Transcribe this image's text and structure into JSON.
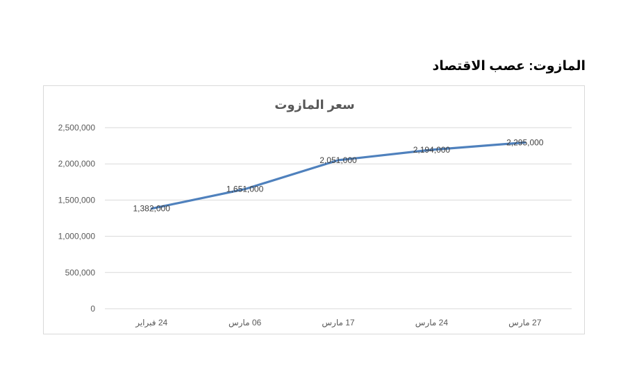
{
  "heading": "المازوت: عصب الاقتصاد",
  "chart_data": {
    "type": "line",
    "title": "سعر المازوت",
    "categories": [
      "24 فبراير",
      "06 مارس",
      "17 مارس",
      "24 مارس",
      "27 مارس"
    ],
    "series": [
      {
        "values": [
          1382000,
          1651000,
          2051000,
          2194000,
          2295000
        ],
        "color": "#4f81bd"
      }
    ],
    "data_labels": [
      "1,382,000",
      "1,651,000",
      "2,051,000",
      "2,194,000",
      "2,295,000"
    ],
    "y_ticks": [
      0,
      500000,
      1000000,
      1500000,
      2000000,
      2500000
    ],
    "y_tick_labels": [
      "0",
      "500,000",
      "1,000,000",
      "1,500,000",
      "2,000,000",
      "2,500,000"
    ],
    "ylim": [
      0,
      2500000
    ],
    "xlabel": "",
    "ylabel": "",
    "grid": true,
    "legend": "none"
  }
}
